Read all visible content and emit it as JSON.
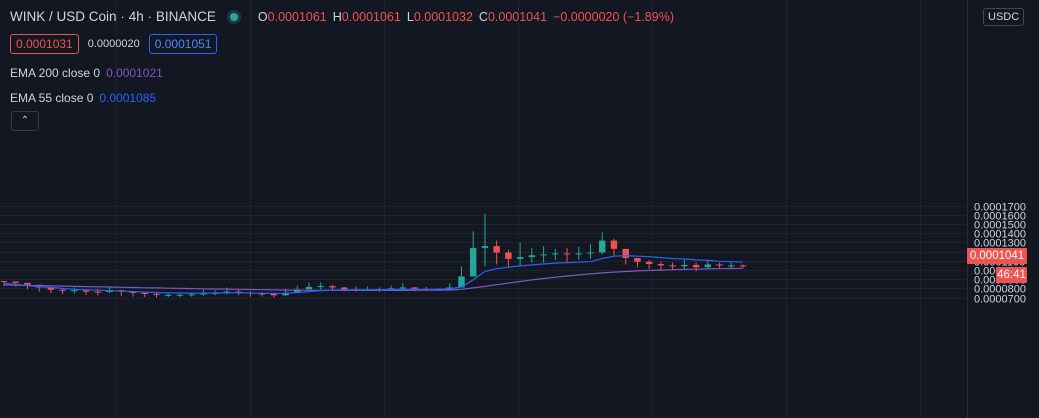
{
  "legend": {
    "symbol": "WINK / USD Coin",
    "interval": "4h",
    "exchange": "BINANCE",
    "separator": "·",
    "open_label": "O",
    "open": "0.0001061",
    "high_label": "H",
    "high": "0.0001061",
    "low_label": "L",
    "low": "0.0001032",
    "close_label": "C",
    "close": "0.0001041",
    "change": "−0.0000020 (−1.89%)"
  },
  "quote": {
    "bid": "0.0001031",
    "spread": "0.0000020",
    "ask": "0.0001051"
  },
  "indicators": {
    "ema200": {
      "label": "EMA 200 close 0",
      "value": "0.0001021",
      "color": "#7e57c2"
    },
    "ema55": {
      "label": "EMA 55 close 0",
      "value": "0.0001085",
      "color": "#2962ff"
    }
  },
  "controls": {
    "collapse_icon": "chevron-up-icon",
    "collapse_glyph": "⌃"
  },
  "price_axis": {
    "currency": "USDC",
    "last_price": "0.0001041",
    "countdown": "46:41",
    "tick_labels": [
      "0.0001700",
      "0.0001600",
      "0.0001500",
      "0.0001400",
      "0.0001300",
      "0.0001200",
      "0.0001100",
      "0.0001000",
      "0.0000900",
      "0.0000800",
      "0.0000700"
    ]
  },
  "colors": {
    "background": "#131722",
    "grid": "#1e222d",
    "up": "#26a69a",
    "down": "#ef5350",
    "ema200": "#7e57c2",
    "ema55": "#2962ff",
    "axis_text": "#d1d4dc"
  },
  "chart_data": {
    "type": "candlestick",
    "symbol": "WINK / USD Coin",
    "interval": "4h",
    "exchange": "BINANCE",
    "ylim": [
      6.55e-05,
      0.0001705
    ],
    "y_ticks": [
      0.00017,
      0.00016,
      0.00015,
      0.00014,
      0.00013,
      0.00012,
      0.00011,
      0.0001,
      9e-05,
      8e-05,
      7e-05
    ],
    "grid": true,
    "candles": [
      [
        8.75e-05,
        8.7e-05,
        8.25e-05
      ],
      [
        8.6e-05,
        8.65e-05,
        8.2e-05
      ],
      [
        8.4e-05,
        8.5e-05,
        7.9e-05
      ],
      [
        8.1e-05,
        8.35e-05,
        7.65e-05
      ],
      [
        7.85e-05,
        8.15e-05,
        7.5e-05
      ],
      [
        7.75e-05,
        8.05e-05,
        7.4e-05
      ],
      [
        7.8e-05,
        8.1e-05,
        7.45e-05
      ],
      [
        7.65e-05,
        7.9e-05,
        7.3e-05
      ],
      [
        7.6e-05,
        7.95e-05,
        7.25e-05
      ],
      [
        7.8e-05,
        8.2e-05,
        7.5e-05
      ],
      [
        7.65e-05,
        7.85e-05,
        7.15e-05
      ],
      [
        7.5e-05,
        7.7e-05,
        7.1e-05
      ],
      [
        7.4e-05,
        7.6e-05,
        7.05e-05
      ],
      [
        7.3e-05,
        7.5e-05,
        7e-05
      ],
      [
        7.3e-05,
        7.5e-05,
        7.05e-05
      ],
      [
        7.3e-05,
        7.55e-05,
        7.05e-05
      ],
      [
        7.35e-05,
        7.6e-05,
        7.1e-05
      ],
      [
        7.45e-05,
        7.85e-05,
        7.2e-05
      ],
      [
        7.5e-05,
        7.8e-05,
        7.25e-05
      ],
      [
        7.65e-05,
        8.1e-05,
        7.35e-05
      ],
      [
        7.55e-05,
        7.9e-05,
        7.25e-05
      ],
      [
        7.45e-05,
        7.65e-05,
        7.1e-05
      ],
      [
        7.4e-05,
        7.6e-05,
        7.1e-05
      ],
      [
        7.25e-05,
        7.5e-05,
        7e-05
      ],
      [
        7.5e-05,
        7.95e-05,
        7.2e-05
      ],
      [
        7.9e-05,
        8.3e-05,
        7.65e-05
      ],
      [
        8.15e-05,
        8.65e-05,
        7.9e-05
      ],
      [
        8.25e-05,
        8.65e-05,
        7.9e-05
      ],
      [
        8.1e-05,
        8.4e-05,
        7.75e-05
      ],
      [
        7.9e-05,
        8.15e-05,
        7.7e-05
      ],
      [
        7.85e-05,
        8.2e-05,
        7.65e-05
      ],
      [
        7.9e-05,
        8.2e-05,
        7.7e-05
      ],
      [
        7.85e-05,
        8.1e-05,
        7.65e-05
      ],
      [
        8e-05,
        8.3e-05,
        7.75e-05
      ],
      [
        8.1e-05,
        8.55e-05,
        7.85e-05
      ],
      [
        7.95e-05,
        8.15e-05,
        7.7e-05
      ],
      [
        7.9e-05,
        8.15e-05,
        7.7e-05
      ],
      [
        7.9e-05,
        8.05e-05,
        7.75e-05
      ],
      [
        8.1e-05,
        8.55e-05,
        7.9e-05
      ],
      [
        9.3e-05,
        0.000104,
        8.1e-05
      ],
      [
        0.000124,
        0.000142,
        9.8e-05
      ],
      [
        0.000126,
        0.000161,
        0.000104
      ],
      [
        0.000119,
        0.000132,
        0.000106
      ],
      [
        0.000112,
        0.000122,
        0.000103
      ],
      [
        0.000114,
        0.00013,
        0.000104
      ],
      [
        0.000116,
        0.000124,
        0.000108
      ],
      [
        0.000117,
        0.000126,
        0.000108
      ],
      [
        0.000118,
        0.000123,
        0.000111
      ],
      [
        0.000117,
        0.000124,
        0.000109
      ],
      [
        0.000118,
        0.000125,
        0.000111
      ],
      [
        0.000119,
        0.000128,
        0.000112
      ],
      [
        0.000132,
        0.000141,
        0.000117
      ],
      [
        0.000123,
        0.000134,
        0.000114
      ],
      [
        0.000113,
        0.000118,
        0.000106
      ],
      [
        0.000109,
        0.000113,
        0.000103
      ],
      [
        0.0001065,
        0.000111,
        0.000101
      ],
      [
        0.000105,
        0.000109,
        0.0001005
      ],
      [
        0.000104,
        0.000108,
        9.95e-05
      ],
      [
        0.0001055,
        0.000111,
        0.000101
      ],
      [
        0.000103,
        0.000108,
        9.85e-05
      ],
      [
        0.000106,
        0.000111,
        0.000101
      ],
      [
        0.000105,
        0.000108,
        0.000102
      ],
      [
        0.000105,
        0.000108,
        0.000102
      ],
      [
        0.000104,
        0.000106,
        0.000102
      ]
    ],
    "ema55_points": [
      8.55e-05,
      8.45e-05,
      8.3e-05,
      8.2e-05,
      8.1e-05,
      8e-05,
      7.9e-05,
      7.85e-05,
      7.8e-05,
      7.75e-05,
      7.7e-05,
      7.65e-05,
      7.6e-05,
      7.55e-05,
      7.52e-05,
      7.5e-05,
      7.49e-05,
      7.49e-05,
      7.5e-05,
      7.52e-05,
      7.52e-05,
      7.5e-05,
      7.48e-05,
      7.46e-05,
      7.48e-05,
      7.55e-05,
      7.65e-05,
      7.75e-05,
      7.82e-05,
      7.85e-05,
      7.85e-05,
      7.86e-05,
      7.86e-05,
      7.88e-05,
      7.9e-05,
      7.9e-05,
      7.9e-05,
      7.9e-05,
      7.95e-05,
      8.15e-05,
      8.95e-05,
      9.85e-05,
      0.0001015,
      0.000103,
      0.0001045,
      0.0001055,
      0.0001065,
      0.0001075,
      0.000108,
      0.0001085,
      0.000109,
      0.0001125,
      0.000115,
      0.0001155,
      0.000115,
      0.0001145,
      0.0001135,
      0.0001125,
      0.000112,
      0.000111,
      0.0001105,
      0.0001095,
      0.000109,
      0.0001085
    ],
    "ema200_points": [
      8.38e-05,
      8.35e-05,
      8.32e-05,
      8.3e-05,
      8.28e-05,
      8.25e-05,
      8.22e-05,
      8.2e-05,
      8.17e-05,
      8.15e-05,
      8.12e-05,
      8.1e-05,
      8.07e-05,
      8.05e-05,
      8.02e-05,
      8e-05,
      7.98e-05,
      7.96e-05,
      7.94e-05,
      7.92e-05,
      7.9e-05,
      7.88e-05,
      7.86e-05,
      7.84e-05,
      7.82e-05,
      7.8e-05,
      7.79e-05,
      7.78e-05,
      7.78e-05,
      7.78e-05,
      7.78e-05,
      7.78e-05,
      7.78e-05,
      7.78e-05,
      7.78e-05,
      7.79e-05,
      7.8e-05,
      7.81e-05,
      7.83e-05,
      7.9e-05,
      8.05e-05,
      8.22e-05,
      8.4e-05,
      8.58e-05,
      8.75e-05,
      8.92e-05,
      9.08e-05,
      9.22e-05,
      9.35e-05,
      9.47e-05,
      9.58e-05,
      9.68e-05,
      9.77e-05,
      9.84e-05,
      9.9e-05,
      9.95e-05,
      9.99e-05,
      0.0001003,
      0.0001006,
      0.0001009,
      0.0001012,
      0.0001014,
      0.0001016,
      0.0001019
    ]
  }
}
